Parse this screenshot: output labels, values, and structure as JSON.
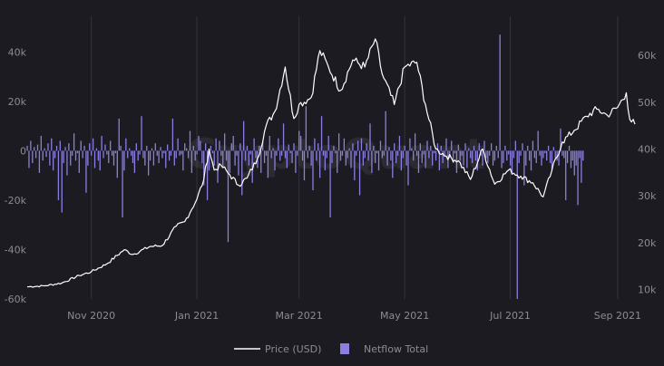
{
  "chart_data": {
    "type": "bar",
    "title": "",
    "watermark": "CryptoQuant",
    "x_tick_labels": [
      "Nov 2020",
      "Jan 2021",
      "Mar 2021",
      "May 2021",
      "Jul 2021",
      "Sep 2021"
    ],
    "y_left_ticks": [
      "40k",
      "20k",
      "0",
      "-20k",
      "-40k",
      "-60k"
    ],
    "y_left_values": [
      40000,
      20000,
      0,
      -20000,
      -40000,
      -60000
    ],
    "y_right_ticks": [
      "60k",
      "50k",
      "40k",
      "30k",
      "20k",
      "10k"
    ],
    "y_right_values": [
      60000,
      50000,
      40000,
      30000,
      20000,
      10000
    ],
    "x_range": [
      "2020-09-25",
      "2021-09-11"
    ],
    "x_tick_dates": [
      "2020-11-01",
      "2021-01-01",
      "2021-03-01",
      "2021-05-01",
      "2021-07-01",
      "2021-09-01"
    ],
    "ylim_left": [
      -60000,
      50000
    ],
    "ylim_right": [
      8000,
      66000
    ],
    "grid": "vertical",
    "legend_position": "bottom-center",
    "colors": {
      "price": "#ffffff",
      "netflow": "#8a7fe0",
      "background": "#1c1b22",
      "grid": "#34333b",
      "tick_text": "#8c8b93"
    },
    "series": [
      {
        "name": "Price (USD)",
        "kind": "line",
        "axis": "right",
        "x": [
          "2020-09-25",
          "2020-10-05",
          "2020-10-15",
          "2020-10-25",
          "2020-11-01",
          "2020-11-10",
          "2020-11-20",
          "2020-11-25",
          "2020-12-05",
          "2020-12-12",
          "2020-12-20",
          "2020-12-25",
          "2021-01-01",
          "2021-01-05",
          "2021-01-08",
          "2021-01-11",
          "2021-01-15",
          "2021-01-20",
          "2021-01-25",
          "2021-01-30",
          "2021-02-05",
          "2021-02-10",
          "2021-02-15",
          "2021-02-21",
          "2021-02-26",
          "2021-03-01",
          "2021-03-08",
          "2021-03-13",
          "2021-03-18",
          "2021-03-25",
          "2021-04-01",
          "2021-04-08",
          "2021-04-14",
          "2021-04-18",
          "2021-04-25",
          "2021-05-01",
          "2021-05-08",
          "2021-05-13",
          "2021-05-19",
          "2021-05-25",
          "2021-06-01",
          "2021-06-08",
          "2021-06-15",
          "2021-06-22",
          "2021-06-30",
          "2021-07-07",
          "2021-07-14",
          "2021-07-20",
          "2021-07-25",
          "2021-07-31",
          "2021-08-07",
          "2021-08-14",
          "2021-08-20",
          "2021-08-26",
          "2021-09-01",
          "2021-09-06",
          "2021-09-08",
          "2021-09-11"
        ],
        "values": [
          10600,
          10800,
          11400,
          13000,
          13800,
          15500,
          18500,
          17500,
          19200,
          19400,
          23500,
          24500,
          29300,
          33500,
          40000,
          35500,
          36500,
          34500,
          32300,
          33800,
          38000,
          45000,
          48000,
          57500,
          46500,
          49500,
          51000,
          61000,
          57500,
          52500,
          59000,
          57500,
          63500,
          56000,
          49500,
          57500,
          58500,
          49500,
          40000,
          38500,
          37500,
          33500,
          40000,
          32500,
          35500,
          34200,
          32800,
          29800,
          35400,
          41500,
          44000,
          47000,
          48500,
          47200,
          48900,
          52000,
          46300,
          45300
        ]
      },
      {
        "name": "Netflow Total",
        "kind": "bar",
        "axis": "left",
        "x_start": "2020-09-25",
        "step_days": 1,
        "values": [
          2000,
          -7000,
          4000,
          -5000,
          1500,
          -3000,
          2500,
          -9000,
          6000,
          -4000,
          1000,
          -2500,
          3000,
          -6000,
          5000,
          -8000,
          -3000,
          2000,
          -20000,
          4000,
          -25000,
          -5000,
          1500,
          -10000,
          3000,
          -6000,
          -2000,
          7000,
          -4000,
          -1000,
          -9000,
          4000,
          -3000,
          2000,
          -17000,
          -6000,
          3000,
          -2000,
          5000,
          -7000,
          1000,
          -4000,
          -8000,
          6000,
          -3000,
          2500,
          -1500,
          -5000,
          4000,
          -2000,
          -6000,
          -1000,
          -11000,
          13000,
          2000,
          -27000,
          -8000,
          5000,
          -3000,
          1000,
          -2000,
          -5000,
          -9000,
          3000,
          -4000,
          -1500,
          14000,
          -3000,
          -6000,
          2000,
          -10000,
          -4000,
          1000,
          -6000,
          3000,
          -2000,
          -5000,
          1500,
          -3000,
          -1000,
          -7000,
          2500,
          -4000,
          -2000,
          13000,
          -6000,
          -3000,
          5000,
          -2000,
          -1500,
          -8000,
          3000,
          1000,
          -3000,
          8000,
          -9000,
          2000,
          -4000,
          -1500,
          6000,
          4000,
          -5000,
          -14000,
          3000,
          -20000,
          -8000,
          2000,
          -1000,
          -6000,
          5000,
          -13000,
          4000,
          -2000,
          -7000,
          7000,
          -4000,
          -37000,
          -9000,
          3000,
          6000,
          -6000,
          -2000,
          -10000,
          3000,
          -18000,
          12000,
          -4000,
          2000,
          -6000,
          -1500,
          -13000,
          5000,
          -3000,
          -7000,
          2000,
          -9000,
          4000,
          -5000,
          -2000,
          -11000,
          6000,
          -3000,
          1000,
          -8000,
          -2000,
          5000,
          -4000,
          -2000,
          11000,
          -3000,
          -7000,
          2500,
          -1000,
          -5000,
          3000,
          -9000,
          -2000,
          8000,
          6000,
          -4000,
          -12000,
          18000,
          -3000,
          2000,
          -6000,
          -16000,
          5000,
          -4000,
          3000,
          -11000,
          14000,
          -2000,
          -8000,
          -3000,
          6000,
          -27000,
          -5000,
          2000,
          -1000,
          -9000,
          7000,
          -4000,
          -2000,
          5000,
          -6000,
          -3000,
          1000,
          -7000,
          3000,
          -12000,
          -2000,
          4000,
          -18000,
          5000,
          -6000,
          -3000,
          3000,
          -4000,
          11000,
          -9000,
          2000,
          -5000,
          -1000,
          -8000,
          4000,
          -3000,
          -2000,
          16000,
          -6000,
          1500,
          -4000,
          -11000,
          3000,
          -5000,
          -2000,
          6000,
          -8000,
          -3000,
          2000,
          -6000,
          -14000,
          5000,
          1000,
          -4000,
          7000,
          -2000,
          -9000,
          3000,
          -5000,
          -1500,
          -7000,
          4000,
          -3000,
          2000,
          -6000,
          -1000,
          -4000,
          3000,
          -8000,
          2000,
          -5000,
          -2000,
          5000,
          -7000,
          -3000,
          4000,
          -5000,
          -1000,
          -9000,
          2500,
          -4000,
          -2000,
          -6000,
          3000,
          -7000,
          1000,
          -3000,
          -5000,
          2000,
          -4000,
          -8000,
          3000,
          -2000,
          -6000,
          4000,
          -3000,
          -5000,
          -2000,
          3000,
          -6000,
          -4000,
          2000,
          -3000,
          47000,
          -7000,
          -5000,
          2000,
          -4000,
          -1500,
          -6000,
          -9000,
          -3000,
          4000,
          -60000,
          -5000,
          -2000,
          3000,
          -14000,
          -6000,
          2000,
          -4000,
          -8000,
          4000,
          -3000,
          -5000,
          8000,
          -2000,
          -6000,
          -3000,
          -1000,
          -4000,
          2000,
          -5000,
          -8000,
          1500,
          -3000,
          -4000,
          -6000,
          9000,
          -2000,
          -3000,
          -20000,
          -5000,
          2000,
          -7000,
          -4000,
          -10000,
          -6000,
          -22000,
          -3000,
          -13000,
          -4000
        ]
      }
    ]
  }
}
